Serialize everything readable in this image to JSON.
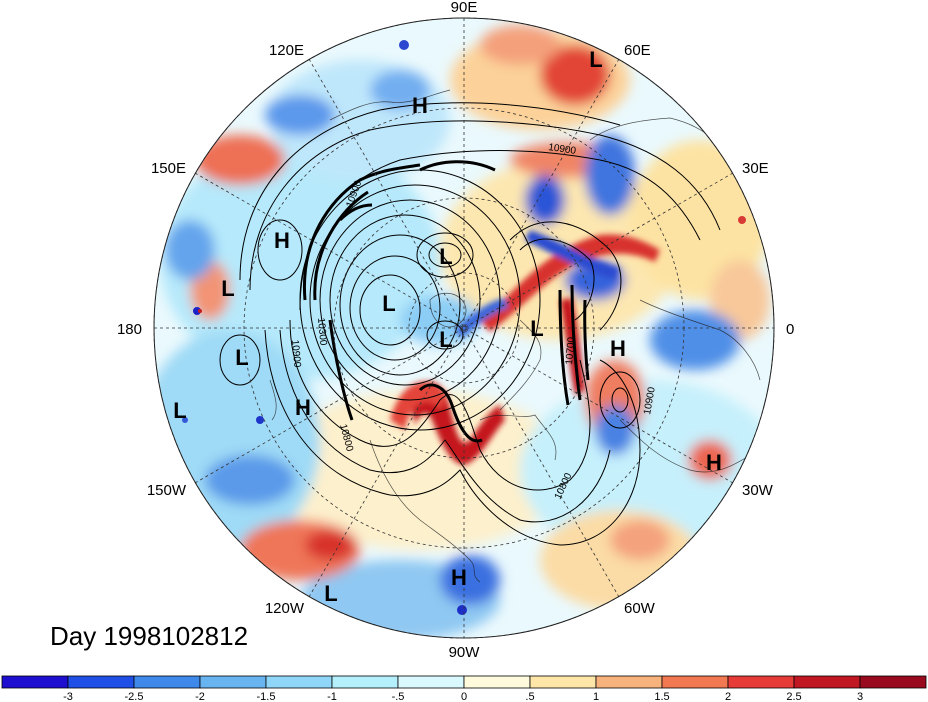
{
  "map": {
    "projection": "north-polar-stereographic",
    "day_label": "Day 1998102812",
    "longitude_labels": [
      "90E",
      "60E",
      "30E",
      "0",
      "30W",
      "60W",
      "90W",
      "120W",
      "150W",
      "180",
      "150E",
      "120E"
    ],
    "pressure_centers": [
      {
        "type": "L",
        "region": "far east Asia"
      },
      {
        "type": "H",
        "region": "western Asia"
      },
      {
        "type": "H",
        "region": "western Pacific"
      },
      {
        "type": "L",
        "region": "east Siberia"
      },
      {
        "type": "L",
        "region": "western Pacific"
      },
      {
        "type": "L",
        "region": "Arctic"
      },
      {
        "type": "L",
        "region": "Arctic"
      },
      {
        "type": "L",
        "region": "central Pacific"
      },
      {
        "type": "L",
        "region": "Greenland"
      },
      {
        "type": "H",
        "region": "north-east Atlantic"
      },
      {
        "type": "L",
        "region": "central Pacific"
      },
      {
        "type": "H",
        "region": "north-east Pacific"
      },
      {
        "type": "H",
        "region": "central Atlantic"
      },
      {
        "type": "H",
        "region": "Gulf of Mexico"
      },
      {
        "type": "L",
        "region": "eastern Pacific"
      }
    ],
    "contour_labels": [
      "10900",
      "10900",
      "10900",
      "10300",
      "10800",
      "10700",
      "10900",
      "10800"
    ],
    "colors": {
      "strong_negative": "#1414d2",
      "negative": "#4a8ce8",
      "weak_negative": "#a8ecfc",
      "weak_positive": "#fde3a3",
      "positive": "#f1836a",
      "strong_positive": "#b0101e"
    }
  },
  "colorbar": {
    "ticks": [
      "-3",
      "-2.5",
      "-2",
      "-1.5",
      "-1",
      "-.5",
      "0",
      ".5",
      "1",
      "1.5",
      "2",
      "2.5",
      "3"
    ],
    "colors": [
      "#1e0ed0",
      "#1f4fe6",
      "#3f89eb",
      "#68b4f1",
      "#90d6f8",
      "#b4effc",
      "#d9f9fe",
      "#fefadb",
      "#fde6a8",
      "#f8b37c",
      "#f27851",
      "#e63b37",
      "#c01722",
      "#9a0a1f"
    ]
  }
}
